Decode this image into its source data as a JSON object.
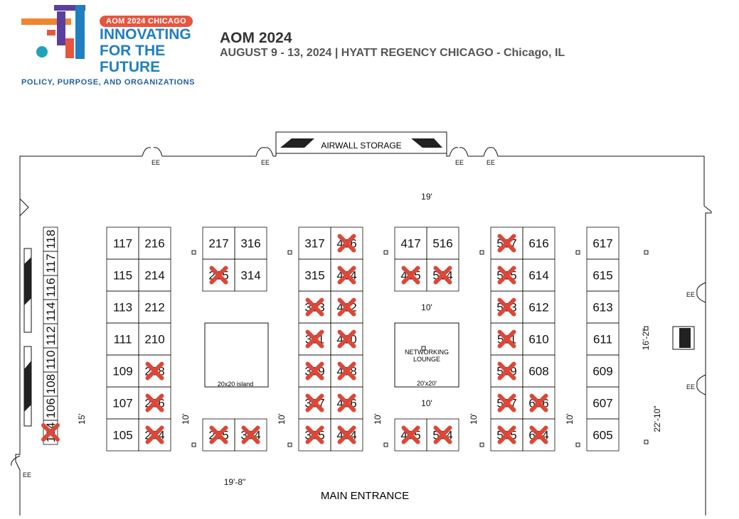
{
  "logo": {
    "badge": "AOM 2024 CHICAGO",
    "lines": [
      "INNOVATING",
      "FOR THE",
      "FUTURE"
    ],
    "tagline": "POLICY, PURPOSE, AND ORGANIZATIONS",
    "colors": {
      "orange": "#f0852d",
      "blue": "#1f7fc0",
      "purple": "#5b3f9e",
      "red": "#e8553e",
      "teal": "#20a3b8"
    }
  },
  "header": {
    "title": "AOM 2024",
    "subtitle": "AUGUST 9 - 13, 2024 | HYATT REGENCY CHICAGO - Chicago, IL"
  },
  "floorplan": {
    "airwall_label": "AIRWALL STORAGE",
    "main_entrance": "MAIN ENTRANCE",
    "island_label": "20x20 island",
    "lounge_label_1": "NETWORKING",
    "lounge_label_2": "LOUNGE",
    "lounge_size": "20'x20'",
    "dimensions": {
      "top_aisle": "19'",
      "bottom_aisle": "19'-8\"",
      "left_aisle": "15'",
      "aisle_10": "10'",
      "right_upper": "16'-2\"",
      "right_lower": "22'-10\"",
      "door_label": "EE"
    },
    "left_wall_booths": [
      {
        "number": "118",
        "sold": false
      },
      {
        "number": "117",
        "sold": false
      },
      {
        "number": "116",
        "sold": false
      },
      {
        "number": "114",
        "sold": false
      },
      {
        "number": "112",
        "sold": false
      },
      {
        "number": "110",
        "sold": false
      },
      {
        "number": "108",
        "sold": false
      },
      {
        "number": "106",
        "sold": false
      },
      {
        "number": "104",
        "sold": true
      }
    ],
    "columns": [
      {
        "rows": [
          {
            "left": {
              "number": "117",
              "sold": false
            },
            "right": {
              "number": "216",
              "sold": false
            }
          },
          {
            "left": {
              "number": "115",
              "sold": false
            },
            "right": {
              "number": "214",
              "sold": false
            }
          },
          {
            "left": {
              "number": "113",
              "sold": false
            },
            "right": {
              "number": "212",
              "sold": false
            }
          },
          {
            "left": {
              "number": "111",
              "sold": false
            },
            "right": {
              "number": "210",
              "sold": false
            }
          },
          {
            "left": {
              "number": "109",
              "sold": false
            },
            "right": {
              "number": "208",
              "sold": true
            }
          },
          {
            "left": {
              "number": "107",
              "sold": false
            },
            "right": {
              "number": "206",
              "sold": true
            }
          },
          {
            "left": {
              "number": "105",
              "sold": false
            },
            "right": {
              "number": "204",
              "sold": true
            }
          }
        ]
      },
      {
        "rows": [
          {
            "left": {
              "number": "217",
              "sold": false
            },
            "right": {
              "number": "316",
              "sold": false
            }
          },
          {
            "left": {
              "number": "215",
              "sold": true
            },
            "right": {
              "number": "314",
              "sold": false
            }
          }
        ],
        "bottom": [
          {
            "left": {
              "number": "205",
              "sold": true
            },
            "right": {
              "number": "304",
              "sold": true
            }
          }
        ]
      },
      {
        "rows": [
          {
            "left": {
              "number": "317",
              "sold": false
            },
            "right": {
              "number": "416",
              "sold": true
            }
          },
          {
            "left": {
              "number": "315",
              "sold": false
            },
            "right": {
              "number": "414",
              "sold": true
            }
          },
          {
            "left": {
              "number": "313",
              "sold": true
            },
            "right": {
              "number": "412",
              "sold": true
            }
          },
          {
            "left": {
              "number": "311",
              "sold": true
            },
            "right": {
              "number": "410",
              "sold": true
            }
          },
          {
            "left": {
              "number": "309",
              "sold": true
            },
            "right": {
              "number": "408",
              "sold": true
            }
          },
          {
            "left": {
              "number": "307",
              "sold": true
            },
            "right": {
              "number": "406",
              "sold": true
            }
          },
          {
            "left": {
              "number": "305",
              "sold": true
            },
            "right": {
              "number": "404",
              "sold": true
            }
          }
        ]
      },
      {
        "rows": [
          {
            "left": {
              "number": "417",
              "sold": false
            },
            "right": {
              "number": "516",
              "sold": false
            }
          },
          {
            "left": {
              "number": "415",
              "sold": true
            },
            "right": {
              "number": "514",
              "sold": true
            }
          }
        ],
        "bottom": [
          {
            "left": {
              "number": "405",
              "sold": true
            },
            "right": {
              "number": "504",
              "sold": true
            }
          }
        ]
      },
      {
        "rows": [
          {
            "left": {
              "number": "517",
              "sold": true
            },
            "right": {
              "number": "616",
              "sold": false
            }
          },
          {
            "left": {
              "number": "515",
              "sold": true
            },
            "right": {
              "number": "614",
              "sold": false
            }
          },
          {
            "left": {
              "number": "513",
              "sold": true
            },
            "right": {
              "number": "612",
              "sold": false
            }
          },
          {
            "left": {
              "number": "511",
              "sold": true
            },
            "right": {
              "number": "610",
              "sold": false
            }
          },
          {
            "left": {
              "number": "509",
              "sold": true
            },
            "right": {
              "number": "608",
              "sold": false
            }
          },
          {
            "left": {
              "number": "507",
              "sold": true
            },
            "right": {
              "number": "606",
              "sold": true
            }
          },
          {
            "left": {
              "number": "505",
              "sold": true
            },
            "right": {
              "number": "604",
              "sold": true
            }
          }
        ]
      },
      {
        "rows": [
          {
            "left": {
              "number": "617",
              "sold": false
            }
          },
          {
            "left": {
              "number": "615",
              "sold": false
            }
          },
          {
            "left": {
              "number": "613",
              "sold": false
            }
          },
          {
            "left": {
              "number": "611",
              "sold": false
            }
          },
          {
            "left": {
              "number": "609",
              "sold": false
            }
          },
          {
            "left": {
              "number": "607",
              "sold": false
            }
          },
          {
            "left": {
              "number": "605",
              "sold": false
            }
          }
        ]
      }
    ],
    "sold_marker_color": "#d9483a"
  }
}
